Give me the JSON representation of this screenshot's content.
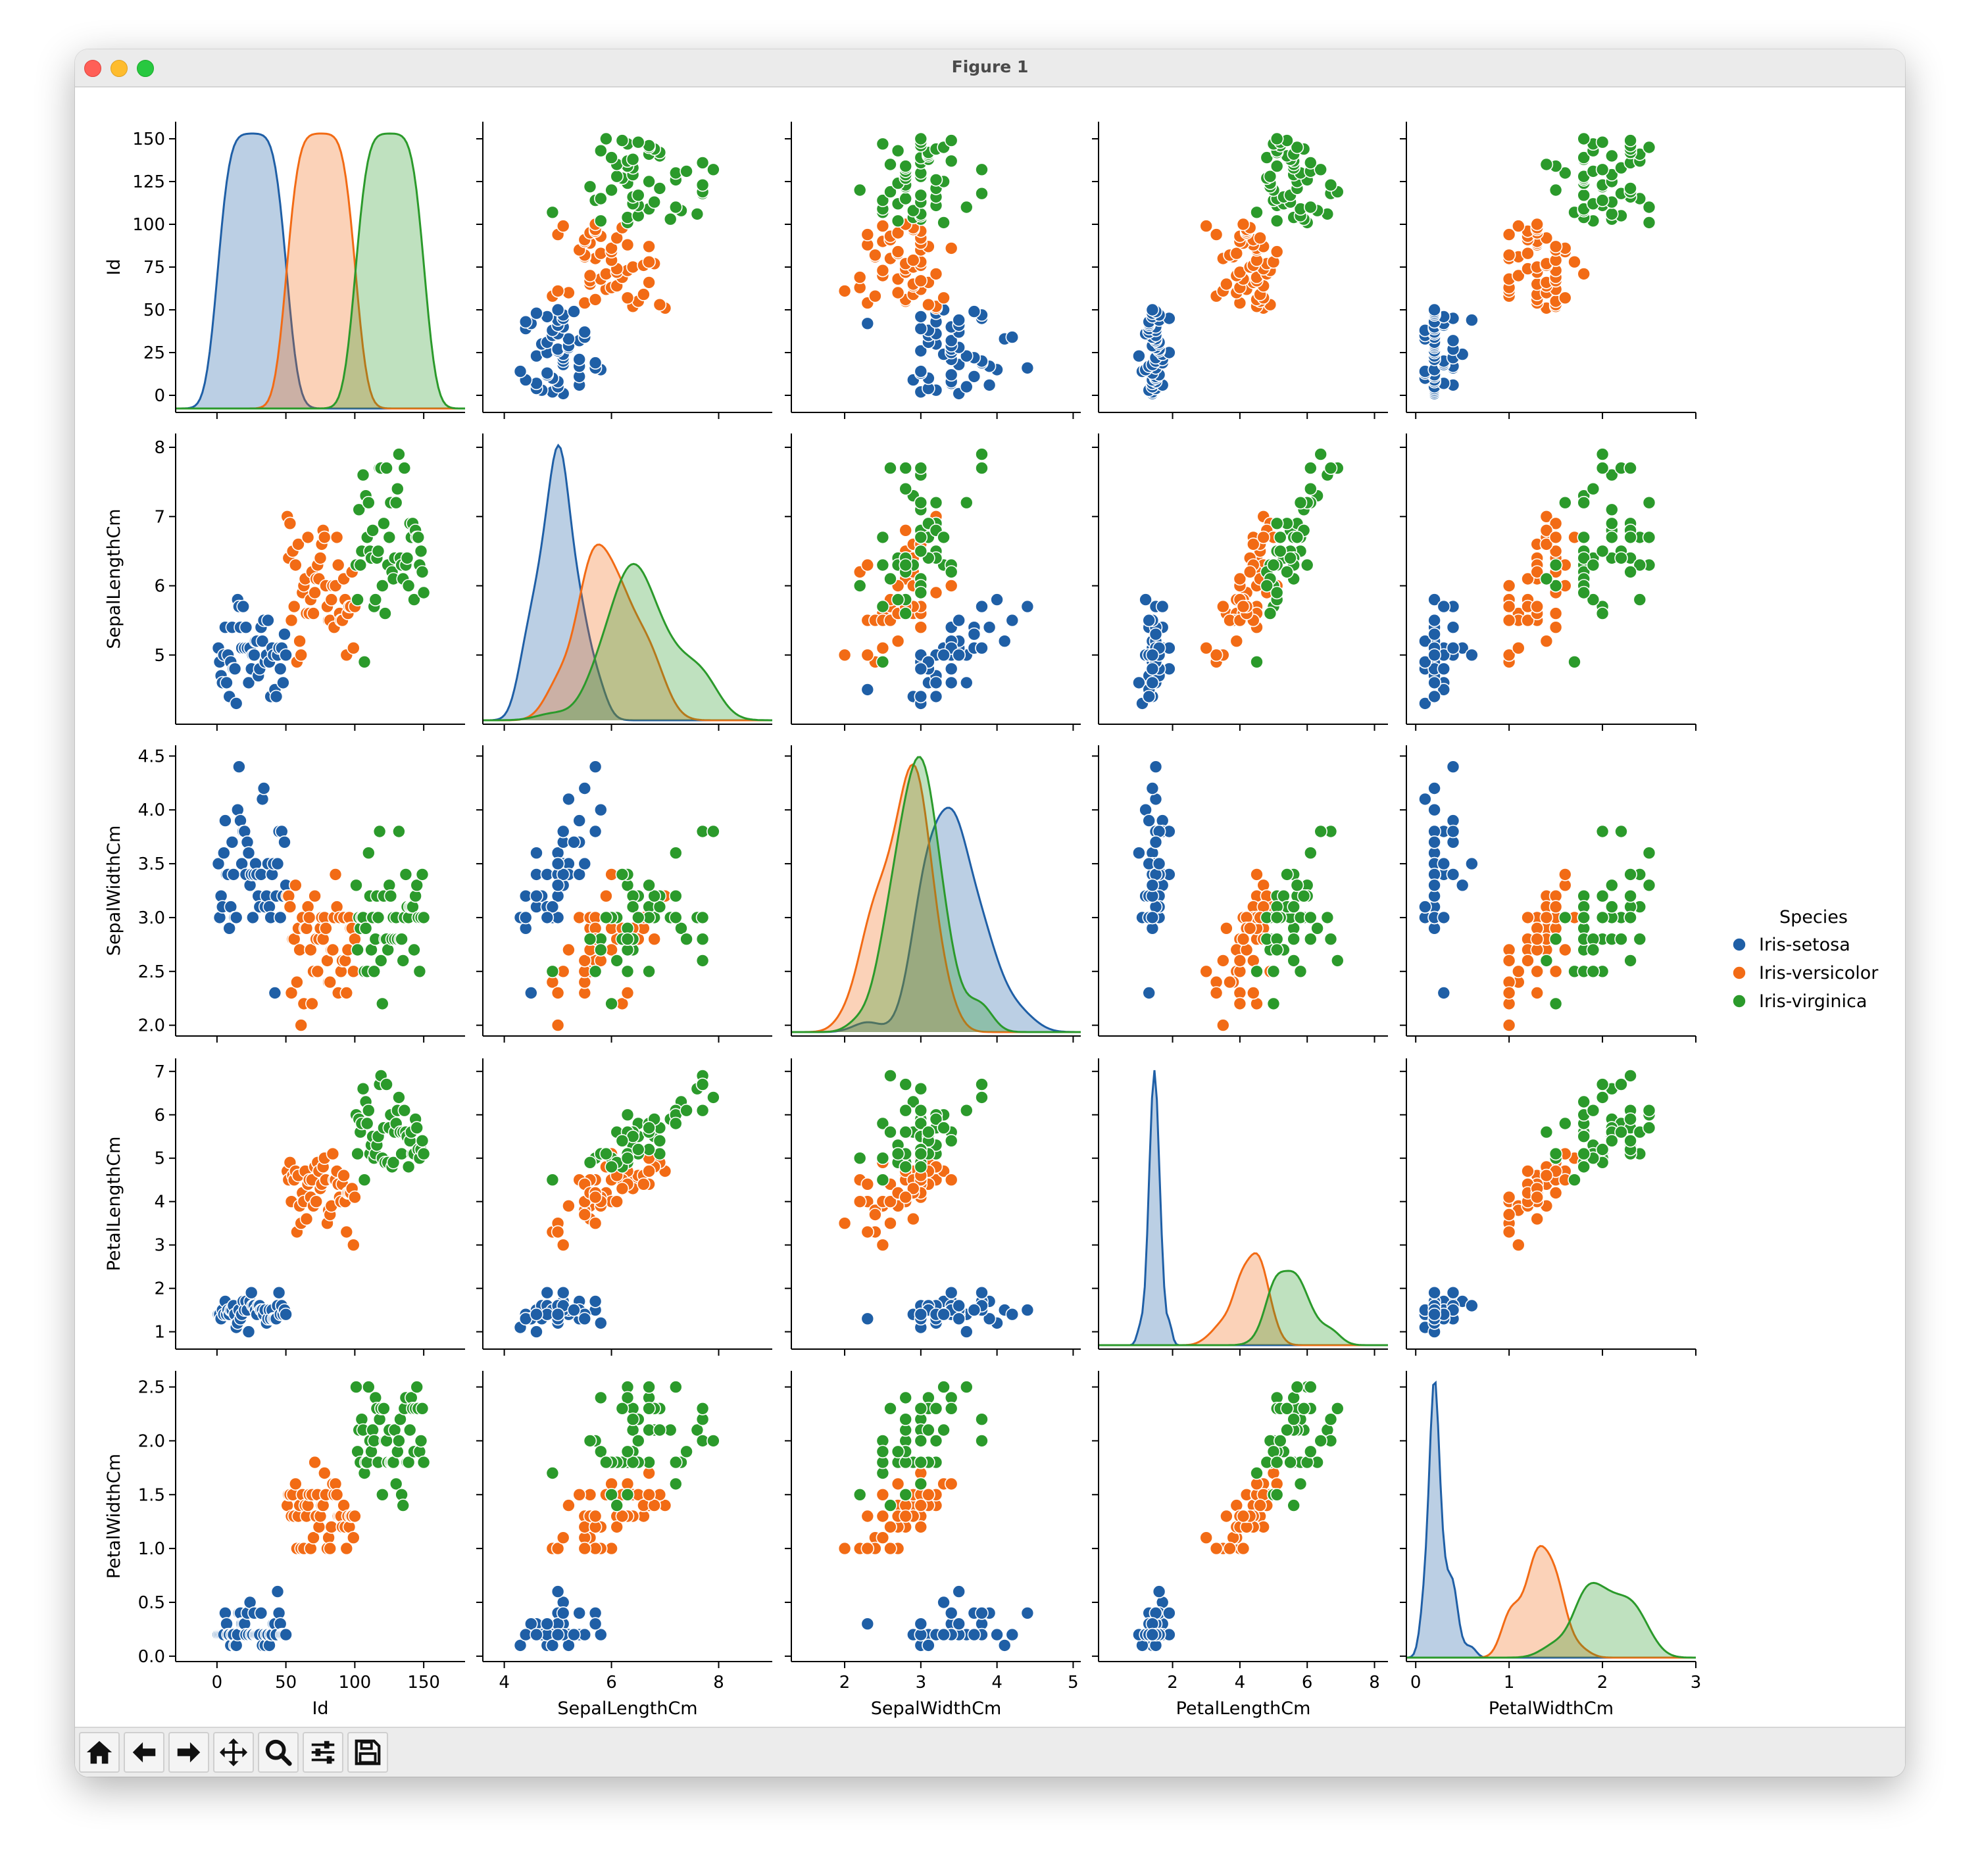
{
  "window": {
    "title": "Figure 1"
  },
  "toolbar": {
    "buttons": [
      {
        "name": "home-button",
        "icon": "home-icon"
      },
      {
        "name": "back-button",
        "icon": "arrow-left-icon"
      },
      {
        "name": "forward-button",
        "icon": "arrow-right-icon"
      },
      {
        "name": "pan-button",
        "icon": "move-icon"
      },
      {
        "name": "zoom-button",
        "icon": "magnifier-icon"
      },
      {
        "name": "configure-subplots-button",
        "icon": "sliders-icon"
      },
      {
        "name": "save-button",
        "icon": "floppy-disk-icon"
      }
    ]
  },
  "chart_data": {
    "type": "scatter",
    "subtype": "pairplot",
    "variables": [
      "Id",
      "SepalLengthCm",
      "SepalWidthCm",
      "PetalLengthCm",
      "PetalWidthCm"
    ],
    "diagonal": "kde",
    "hue": "Species",
    "legend": {
      "title": "Species",
      "placement": "right",
      "entries": [
        "Iris-setosa",
        "Iris-versicolor",
        "Iris-virginica"
      ]
    },
    "colors": {
      "Iris-setosa": "#1f5fa6",
      "Iris-versicolor": "#f26b15",
      "Iris-virginica": "#2b9a2b"
    },
    "axes": {
      "Id": {
        "lim": [
          -30,
          180
        ],
        "ticks": [
          0,
          50,
          100,
          150
        ],
        "ylim": [
          -10,
          160
        ],
        "yticks": [
          0,
          25,
          50,
          75,
          100,
          125,
          150
        ]
      },
      "SepalLengthCm": {
        "lim": [
          3.6,
          9.0
        ],
        "ticks": [
          4,
          6,
          8
        ],
        "ylim": [
          4.0,
          8.2
        ],
        "yticks": [
          5,
          6,
          7,
          8
        ]
      },
      "SepalWidthCm": {
        "lim": [
          1.3,
          5.1
        ],
        "ticks": [
          2,
          3,
          4,
          5
        ],
        "ylim": [
          1.9,
          4.6
        ],
        "yticks": [
          2.0,
          2.5,
          3.0,
          3.5,
          4.0,
          4.5
        ]
      },
      "PetalLengthCm": {
        "lim": [
          -0.2,
          8.4
        ],
        "ticks": [
          2,
          4,
          6,
          8
        ],
        "ylim": [
          0.6,
          7.3
        ],
        "yticks": [
          1,
          2,
          3,
          4,
          5,
          6,
          7
        ]
      },
      "PetalWidthCm": {
        "lim": [
          -0.1,
          3.0
        ],
        "ticks": [
          0,
          1,
          2,
          3
        ],
        "ylim": [
          -0.05,
          2.65
        ],
        "yticks": [
          0.0,
          0.5,
          1.0,
          1.5,
          2.0,
          2.5
        ]
      }
    },
    "rows": [
      [
        "Id",
        "SepalLengthCm",
        "SepalWidthCm",
        "PetalLengthCm",
        "PetalWidthCm",
        "Species"
      ],
      [
        1,
        5.1,
        3.5,
        1.4,
        0.2,
        "Iris-setosa"
      ],
      [
        2,
        4.9,
        3.0,
        1.4,
        0.2,
        "Iris-setosa"
      ],
      [
        3,
        4.7,
        3.2,
        1.3,
        0.2,
        "Iris-setosa"
      ],
      [
        4,
        4.6,
        3.1,
        1.5,
        0.2,
        "Iris-setosa"
      ],
      [
        5,
        5.0,
        3.6,
        1.4,
        0.2,
        "Iris-setosa"
      ],
      [
        6,
        5.4,
        3.9,
        1.7,
        0.4,
        "Iris-setosa"
      ],
      [
        7,
        4.6,
        3.4,
        1.4,
        0.3,
        "Iris-setosa"
      ],
      [
        8,
        5.0,
        3.4,
        1.5,
        0.2,
        "Iris-setosa"
      ],
      [
        9,
        4.4,
        2.9,
        1.4,
        0.2,
        "Iris-setosa"
      ],
      [
        10,
        4.9,
        3.1,
        1.5,
        0.1,
        "Iris-setosa"
      ],
      [
        11,
        5.4,
        3.7,
        1.5,
        0.2,
        "Iris-setosa"
      ],
      [
        12,
        4.8,
        3.4,
        1.6,
        0.2,
        "Iris-setosa"
      ],
      [
        13,
        4.8,
        3.0,
        1.4,
        0.1,
        "Iris-setosa"
      ],
      [
        14,
        4.3,
        3.0,
        1.1,
        0.1,
        "Iris-setosa"
      ],
      [
        15,
        5.8,
        4.0,
        1.2,
        0.2,
        "Iris-setosa"
      ],
      [
        16,
        5.7,
        4.4,
        1.5,
        0.4,
        "Iris-setosa"
      ],
      [
        17,
        5.4,
        3.9,
        1.3,
        0.4,
        "Iris-setosa"
      ],
      [
        18,
        5.1,
        3.5,
        1.4,
        0.3,
        "Iris-setosa"
      ],
      [
        19,
        5.7,
        3.8,
        1.7,
        0.3,
        "Iris-setosa"
      ],
      [
        20,
        5.1,
        3.8,
        1.5,
        0.3,
        "Iris-setosa"
      ],
      [
        21,
        5.4,
        3.4,
        1.7,
        0.2,
        "Iris-setosa"
      ],
      [
        22,
        5.1,
        3.7,
        1.5,
        0.4,
        "Iris-setosa"
      ],
      [
        23,
        4.6,
        3.6,
        1.0,
        0.2,
        "Iris-setosa"
      ],
      [
        24,
        5.1,
        3.3,
        1.7,
        0.5,
        "Iris-setosa"
      ],
      [
        25,
        4.8,
        3.4,
        1.9,
        0.2,
        "Iris-setosa"
      ],
      [
        26,
        5.0,
        3.0,
        1.6,
        0.2,
        "Iris-setosa"
      ],
      [
        27,
        5.0,
        3.4,
        1.6,
        0.4,
        "Iris-setosa"
      ],
      [
        28,
        5.2,
        3.5,
        1.5,
        0.2,
        "Iris-setosa"
      ],
      [
        29,
        5.2,
        3.4,
        1.4,
        0.2,
        "Iris-setosa"
      ],
      [
        30,
        4.7,
        3.2,
        1.6,
        0.2,
        "Iris-setosa"
      ],
      [
        31,
        4.8,
        3.1,
        1.6,
        0.2,
        "Iris-setosa"
      ],
      [
        32,
        5.4,
        3.4,
        1.5,
        0.4,
        "Iris-setosa"
      ],
      [
        33,
        5.2,
        4.1,
        1.5,
        0.1,
        "Iris-setosa"
      ],
      [
        34,
        5.5,
        4.2,
        1.4,
        0.2,
        "Iris-setosa"
      ],
      [
        35,
        4.9,
        3.1,
        1.5,
        0.1,
        "Iris-setosa"
      ],
      [
        36,
        5.0,
        3.2,
        1.2,
        0.2,
        "Iris-setosa"
      ],
      [
        37,
        5.5,
        3.5,
        1.3,
        0.2,
        "Iris-setosa"
      ],
      [
        38,
        4.9,
        3.1,
        1.5,
        0.1,
        "Iris-setosa"
      ],
      [
        39,
        4.4,
        3.0,
        1.3,
        0.2,
        "Iris-setosa"
      ],
      [
        40,
        5.1,
        3.4,
        1.5,
        0.2,
        "Iris-setosa"
      ],
      [
        41,
        5.0,
        3.5,
        1.3,
        0.3,
        "Iris-setosa"
      ],
      [
        42,
        4.5,
        2.3,
        1.3,
        0.3,
        "Iris-setosa"
      ],
      [
        43,
        4.4,
        3.2,
        1.3,
        0.2,
        "Iris-setosa"
      ],
      [
        44,
        5.0,
        3.5,
        1.6,
        0.6,
        "Iris-setosa"
      ],
      [
        45,
        5.1,
        3.8,
        1.9,
        0.4,
        "Iris-setosa"
      ],
      [
        46,
        4.8,
        3.0,
        1.4,
        0.3,
        "Iris-setosa"
      ],
      [
        47,
        5.1,
        3.8,
        1.6,
        0.2,
        "Iris-setosa"
      ],
      [
        48,
        4.6,
        3.2,
        1.4,
        0.2,
        "Iris-setosa"
      ],
      [
        49,
        5.3,
        3.7,
        1.5,
        0.2,
        "Iris-setosa"
      ],
      [
        50,
        5.0,
        3.3,
        1.4,
        0.2,
        "Iris-setosa"
      ],
      [
        51,
        7.0,
        3.2,
        4.7,
        1.4,
        "Iris-versicolor"
      ],
      [
        52,
        6.4,
        3.2,
        4.5,
        1.5,
        "Iris-versicolor"
      ],
      [
        53,
        6.9,
        3.1,
        4.9,
        1.5,
        "Iris-versicolor"
      ],
      [
        54,
        5.5,
        2.3,
        4.0,
        1.3,
        "Iris-versicolor"
      ],
      [
        55,
        6.5,
        2.8,
        4.6,
        1.5,
        "Iris-versicolor"
      ],
      [
        56,
        5.7,
        2.8,
        4.5,
        1.3,
        "Iris-versicolor"
      ],
      [
        57,
        6.3,
        3.3,
        4.7,
        1.6,
        "Iris-versicolor"
      ],
      [
        58,
        4.9,
        2.4,
        3.3,
        1.0,
        "Iris-versicolor"
      ],
      [
        59,
        6.6,
        2.9,
        4.6,
        1.3,
        "Iris-versicolor"
      ],
      [
        60,
        5.2,
        2.7,
        3.9,
        1.4,
        "Iris-versicolor"
      ],
      [
        61,
        5.0,
        2.0,
        3.5,
        1.0,
        "Iris-versicolor"
      ],
      [
        62,
        5.9,
        3.0,
        4.2,
        1.5,
        "Iris-versicolor"
      ],
      [
        63,
        6.0,
        2.2,
        4.0,
        1.0,
        "Iris-versicolor"
      ],
      [
        64,
        6.1,
        2.9,
        4.7,
        1.4,
        "Iris-versicolor"
      ],
      [
        65,
        5.6,
        2.9,
        3.6,
        1.3,
        "Iris-versicolor"
      ],
      [
        66,
        6.7,
        3.1,
        4.4,
        1.4,
        "Iris-versicolor"
      ],
      [
        67,
        5.6,
        3.0,
        4.5,
        1.5,
        "Iris-versicolor"
      ],
      [
        68,
        5.8,
        2.7,
        4.1,
        1.0,
        "Iris-versicolor"
      ],
      [
        69,
        6.2,
        2.2,
        4.5,
        1.5,
        "Iris-versicolor"
      ],
      [
        70,
        5.6,
        2.5,
        3.9,
        1.1,
        "Iris-versicolor"
      ],
      [
        71,
        5.9,
        3.2,
        4.8,
        1.8,
        "Iris-versicolor"
      ],
      [
        72,
        6.1,
        2.8,
        4.0,
        1.3,
        "Iris-versicolor"
      ],
      [
        73,
        6.3,
        2.5,
        4.9,
        1.5,
        "Iris-versicolor"
      ],
      [
        74,
        6.1,
        2.8,
        4.7,
        1.2,
        "Iris-versicolor"
      ],
      [
        75,
        6.4,
        2.9,
        4.3,
        1.3,
        "Iris-versicolor"
      ],
      [
        76,
        6.6,
        3.0,
        4.4,
        1.4,
        "Iris-versicolor"
      ],
      [
        77,
        6.8,
        2.8,
        4.8,
        1.4,
        "Iris-versicolor"
      ],
      [
        78,
        6.7,
        3.0,
        5.0,
        1.7,
        "Iris-versicolor"
      ],
      [
        79,
        6.0,
        2.9,
        4.5,
        1.5,
        "Iris-versicolor"
      ],
      [
        80,
        5.7,
        2.6,
        3.5,
        1.0,
        "Iris-versicolor"
      ],
      [
        81,
        5.5,
        2.4,
        3.8,
        1.1,
        "Iris-versicolor"
      ],
      [
        82,
        5.5,
        2.4,
        3.7,
        1.0,
        "Iris-versicolor"
      ],
      [
        83,
        5.8,
        2.7,
        3.9,
        1.2,
        "Iris-versicolor"
      ],
      [
        84,
        6.0,
        2.7,
        5.1,
        1.6,
        "Iris-versicolor"
      ],
      [
        85,
        5.4,
        3.0,
        4.5,
        1.5,
        "Iris-versicolor"
      ],
      [
        86,
        6.0,
        3.4,
        4.5,
        1.6,
        "Iris-versicolor"
      ],
      [
        87,
        6.7,
        3.1,
        4.7,
        1.5,
        "Iris-versicolor"
      ],
      [
        88,
        6.3,
        2.3,
        4.4,
        1.3,
        "Iris-versicolor"
      ],
      [
        89,
        5.6,
        3.0,
        4.1,
        1.3,
        "Iris-versicolor"
      ],
      [
        90,
        5.5,
        2.5,
        4.0,
        1.3,
        "Iris-versicolor"
      ],
      [
        91,
        5.5,
        2.6,
        4.4,
        1.2,
        "Iris-versicolor"
      ],
      [
        92,
        6.1,
        3.0,
        4.6,
        1.4,
        "Iris-versicolor"
      ],
      [
        93,
        5.8,
        2.6,
        4.0,
        1.2,
        "Iris-versicolor"
      ],
      [
        94,
        5.0,
        2.3,
        3.3,
        1.0,
        "Iris-versicolor"
      ],
      [
        95,
        5.6,
        2.7,
        4.2,
        1.3,
        "Iris-versicolor"
      ],
      [
        96,
        5.7,
        3.0,
        4.2,
        1.2,
        "Iris-versicolor"
      ],
      [
        97,
        5.7,
        2.9,
        4.2,
        1.3,
        "Iris-versicolor"
      ],
      [
        98,
        6.2,
        2.9,
        4.3,
        1.3,
        "Iris-versicolor"
      ],
      [
        99,
        5.1,
        2.5,
        3.0,
        1.1,
        "Iris-versicolor"
      ],
      [
        100,
        5.7,
        2.8,
        4.1,
        1.3,
        "Iris-versicolor"
      ],
      [
        101,
        6.3,
        3.3,
        6.0,
        2.5,
        "Iris-virginica"
      ],
      [
        102,
        5.8,
        2.7,
        5.1,
        1.9,
        "Iris-virginica"
      ],
      [
        103,
        7.1,
        3.0,
        5.9,
        2.1,
        "Iris-virginica"
      ],
      [
        104,
        6.3,
        2.9,
        5.6,
        1.8,
        "Iris-virginica"
      ],
      [
        105,
        6.5,
        3.0,
        5.8,
        2.2,
        "Iris-virginica"
      ],
      [
        106,
        7.6,
        3.0,
        6.6,
        2.1,
        "Iris-virginica"
      ],
      [
        107,
        4.9,
        2.5,
        4.5,
        1.7,
        "Iris-virginica"
      ],
      [
        108,
        7.3,
        2.9,
        6.3,
        1.8,
        "Iris-virginica"
      ],
      [
        109,
        6.7,
        2.5,
        5.8,
        1.8,
        "Iris-virginica"
      ],
      [
        110,
        7.2,
        3.6,
        6.1,
        2.5,
        "Iris-virginica"
      ],
      [
        111,
        6.5,
        3.2,
        5.1,
        2.0,
        "Iris-virginica"
      ],
      [
        112,
        6.4,
        2.7,
        5.3,
        1.9,
        "Iris-virginica"
      ],
      [
        113,
        6.8,
        3.0,
        5.5,
        2.1,
        "Iris-virginica"
      ],
      [
        114,
        5.7,
        2.5,
        5.0,
        2.0,
        "Iris-virginica"
      ],
      [
        115,
        5.8,
        2.8,
        5.1,
        2.4,
        "Iris-virginica"
      ],
      [
        116,
        6.4,
        3.2,
        5.3,
        2.3,
        "Iris-virginica"
      ],
      [
        117,
        6.5,
        3.0,
        5.5,
        1.8,
        "Iris-virginica"
      ],
      [
        118,
        7.7,
        3.8,
        6.7,
        2.2,
        "Iris-virginica"
      ],
      [
        119,
        7.7,
        2.6,
        6.9,
        2.3,
        "Iris-virginica"
      ],
      [
        120,
        6.0,
        2.2,
        5.0,
        1.5,
        "Iris-virginica"
      ],
      [
        121,
        6.9,
        3.2,
        5.7,
        2.3,
        "Iris-virginica"
      ],
      [
        122,
        5.6,
        2.8,
        4.9,
        2.0,
        "Iris-virginica"
      ],
      [
        123,
        7.7,
        2.8,
        6.7,
        2.0,
        "Iris-virginica"
      ],
      [
        124,
        6.3,
        2.7,
        4.9,
        1.8,
        "Iris-virginica"
      ],
      [
        125,
        6.7,
        3.3,
        5.7,
        2.1,
        "Iris-virginica"
      ],
      [
        126,
        7.2,
        3.2,
        6.0,
        1.8,
        "Iris-virginica"
      ],
      [
        127,
        6.2,
        2.8,
        4.8,
        1.8,
        "Iris-virginica"
      ],
      [
        128,
        6.1,
        3.0,
        4.9,
        1.8,
        "Iris-virginica"
      ],
      [
        129,
        6.4,
        2.8,
        5.6,
        2.1,
        "Iris-virginica"
      ],
      [
        130,
        7.2,
        3.0,
        5.8,
        1.6,
        "Iris-virginica"
      ],
      [
        131,
        7.4,
        2.8,
        6.1,
        1.9,
        "Iris-virginica"
      ],
      [
        132,
        7.9,
        3.8,
        6.4,
        2.0,
        "Iris-virginica"
      ],
      [
        133,
        6.4,
        2.8,
        5.6,
        2.2,
        "Iris-virginica"
      ],
      [
        134,
        6.3,
        2.8,
        5.1,
        1.5,
        "Iris-virginica"
      ],
      [
        135,
        6.1,
        2.6,
        5.6,
        1.4,
        "Iris-virginica"
      ],
      [
        136,
        7.7,
        3.0,
        6.1,
        2.3,
        "Iris-virginica"
      ],
      [
        137,
        6.3,
        3.4,
        5.6,
        2.4,
        "Iris-virginica"
      ],
      [
        138,
        6.4,
        3.1,
        5.5,
        1.8,
        "Iris-virginica"
      ],
      [
        139,
        6.0,
        3.0,
        4.8,
        1.8,
        "Iris-virginica"
      ],
      [
        140,
        6.9,
        3.1,
        5.4,
        2.1,
        "Iris-virginica"
      ],
      [
        141,
        6.7,
        3.1,
        5.6,
        2.4,
        "Iris-virginica"
      ],
      [
        142,
        6.9,
        3.1,
        5.1,
        2.3,
        "Iris-virginica"
      ],
      [
        143,
        5.8,
        2.7,
        5.1,
        1.9,
        "Iris-virginica"
      ],
      [
        144,
        6.8,
        3.2,
        5.9,
        2.3,
        "Iris-virginica"
      ],
      [
        145,
        6.7,
        3.3,
        5.7,
        2.5,
        "Iris-virginica"
      ],
      [
        146,
        6.7,
        3.0,
        5.2,
        2.3,
        "Iris-virginica"
      ],
      [
        147,
        6.3,
        2.5,
        5.0,
        1.9,
        "Iris-virginica"
      ],
      [
        148,
        6.5,
        3.0,
        5.2,
        2.0,
        "Iris-virginica"
      ],
      [
        149,
        6.2,
        3.4,
        5.4,
        2.3,
        "Iris-virginica"
      ],
      [
        150,
        5.9,
        3.0,
        5.1,
        1.8,
        "Iris-virginica"
      ]
    ]
  }
}
